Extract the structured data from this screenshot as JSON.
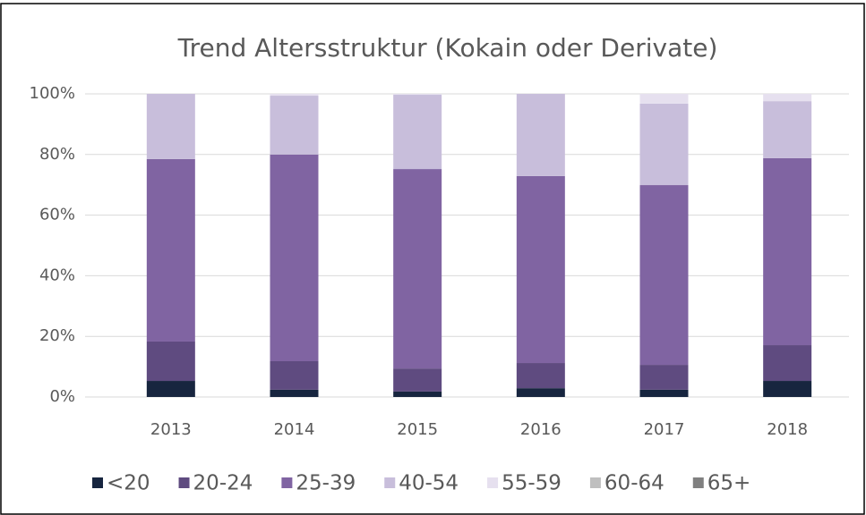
{
  "chart_data": {
    "type": "stacked_bar",
    "title": "Trend Altersstruktur (Kokain oder Derivate)",
    "categories": [
      "2013",
      "2014",
      "2015",
      "2016",
      "2017",
      "2018"
    ],
    "series": [
      {
        "name": "<20",
        "color": "#17253f",
        "values": [
          5.3,
          2.4,
          1.8,
          2.9,
          2.4,
          5.3
        ]
      },
      {
        "name": "20-24",
        "color": "#5f4b80",
        "values": [
          13,
          9.4,
          7.6,
          8.3,
          8.2,
          11.8
        ]
      },
      {
        "name": "25-39",
        "color": "#8064a2",
        "values": [
          60.2,
          68.2,
          65.8,
          61.7,
          59.3,
          61.7
        ]
      },
      {
        "name": "40-54",
        "color": "#c8bedb",
        "values": [
          21.5,
          19.4,
          24.5,
          27.1,
          26.9,
          18.8
        ]
      },
      {
        "name": "55-59",
        "color": "#e6e0ef",
        "values": [
          0,
          0.6,
          0.3,
          0,
          3.2,
          2.4
        ]
      },
      {
        "name": "60-64",
        "color": "#bfbfbf",
        "values": [
          0,
          0,
          0,
          0,
          0,
          0
        ]
      },
      {
        "name": "65+",
        "color": "#808080",
        "values": [
          0,
          0,
          0,
          0,
          0,
          0
        ]
      }
    ],
    "ylim": [
      0,
      100
    ],
    "yticks": [
      {
        "value": 0,
        "label": "0%"
      },
      {
        "value": 20,
        "label": "20%"
      },
      {
        "value": 40,
        "label": "40%"
      },
      {
        "value": 60,
        "label": "60%"
      },
      {
        "value": 80,
        "label": "80%"
      },
      {
        "value": 100,
        "label": "100%"
      }
    ],
    "grid": true,
    "legend": "bottom"
  }
}
